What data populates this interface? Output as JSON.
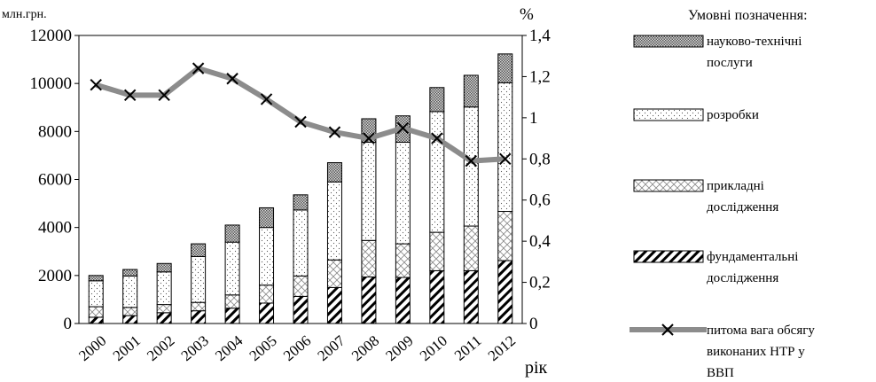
{
  "chart_data": {
    "type": "bar",
    "stacked": true,
    "categories": [
      "2000",
      "2001",
      "2002",
      "2003",
      "2004",
      "2005",
      "2006",
      "2007",
      "2008",
      "2009",
      "2010",
      "2011",
      "2012"
    ],
    "y_unit_label": "млн.грн.",
    "y2_unit_label": "%",
    "x_unit_label": "рік",
    "ylim": [
      0,
      12000
    ],
    "y_ticks": [
      "0",
      "2000",
      "4000",
      "6000",
      "8000",
      "10000",
      "12000"
    ],
    "y2lim": [
      0,
      1.4
    ],
    "y2_ticks": [
      "0",
      "0,2",
      "0,4",
      "0,6",
      "0,8",
      "1",
      "1,2",
      "1,4"
    ],
    "legend_title": "Умовні позначення:",
    "series": [
      {
        "name": "фундаментальні дослідження",
        "values": [
          260,
          330,
          450,
          530,
          640,
          850,
          1130,
          1500,
          1940,
          1920,
          2200,
          2200,
          2620
        ]
      },
      {
        "name": "прикладні дослідження",
        "values": [
          440,
          340,
          340,
          350,
          550,
          750,
          850,
          1150,
          1520,
          1400,
          1600,
          1860,
          2050
        ]
      },
      {
        "name": "розробки",
        "values": [
          1080,
          1310,
          1360,
          1910,
          2200,
          2400,
          2750,
          3250,
          4090,
          4230,
          5030,
          4960,
          5360
        ]
      },
      {
        "name": "науково-технічні послуги",
        "values": [
          220,
          270,
          350,
          530,
          710,
          820,
          630,
          800,
          980,
          1100,
          1000,
          1320,
          1200
        ]
      }
    ],
    "line_series": {
      "name": "питома вага обсягу виконаних НТР у ВВП",
      "axis": "right",
      "values": [
        1.16,
        1.11,
        1.11,
        1.24,
        1.19,
        1.09,
        0.98,
        0.93,
        0.9,
        0.95,
        0.9,
        0.79,
        0.8
      ]
    },
    "legend": {
      "nauk": [
        "науково-технічні",
        "послуги"
      ],
      "rozrob": [
        "розробки"
      ],
      "prykl": [
        "прикладні",
        "дослідження"
      ],
      "fund": [
        "фундаментальні",
        "дослідження"
      ],
      "line": [
        "питома вага обсягу",
        "виконаних НТР у",
        "ВВП"
      ]
    }
  }
}
